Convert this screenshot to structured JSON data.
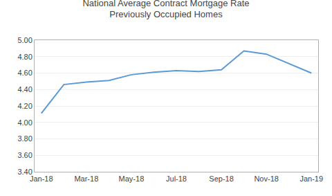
{
  "chart_data": {
    "type": "line",
    "title": "National Average Contract Mortgage Rate\nPreviously Occupied Homes",
    "x": [
      0,
      1,
      2,
      3,
      4,
      5,
      6,
      7,
      8,
      9,
      10,
      12
    ],
    "values": [
      4.11,
      4.46,
      4.49,
      4.51,
      4.58,
      4.61,
      4.63,
      4.62,
      4.64,
      4.87,
      4.83,
      4.6
    ],
    "color": "#5B9BD5",
    "xlim": [
      -0.3,
      12.3
    ],
    "xticks": [
      {
        "value": 0,
        "label": "Jan-18"
      },
      {
        "value": 2,
        "label": "Mar-18"
      },
      {
        "value": 4,
        "label": "May-18"
      },
      {
        "value": 6,
        "label": "Jul-18"
      },
      {
        "value": 8,
        "label": "Sep-18"
      },
      {
        "value": 10,
        "label": "Nov-18"
      },
      {
        "value": 12,
        "label": "Jan-19"
      }
    ],
    "ylim": [
      3.4,
      5.0
    ],
    "yticks": [
      {
        "value": 3.4,
        "label": "3.40"
      },
      {
        "value": 3.6,
        "label": "3.60"
      },
      {
        "value": 3.8,
        "label": "3.80"
      },
      {
        "value": 4.0,
        "label": "4.00"
      },
      {
        "value": 4.2,
        "label": "4.20"
      },
      {
        "value": 4.4,
        "label": "4.40"
      },
      {
        "value": 4.6,
        "label": "4.60"
      },
      {
        "value": 4.8,
        "label": "4.80"
      },
      {
        "value": 5.0,
        "label": "5.00"
      }
    ],
    "grid": "y"
  }
}
